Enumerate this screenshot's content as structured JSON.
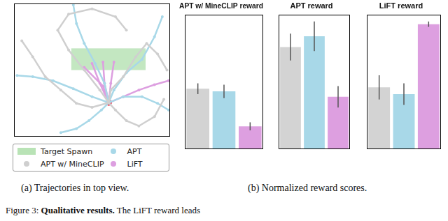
{
  "chart_data": [
    {
      "type": "scatter",
      "xlim": [
        0,
        100
      ],
      "ylim": [
        0,
        100
      ],
      "tick_labels": false,
      "legend": "bottom",
      "target": {
        "name": "Target Spawn",
        "xrange": [
          36.7,
          84.3
        ],
        "yrange": [
          50,
          66.3
        ],
        "color": "#b9e3b6"
      },
      "start": {
        "x": 60.7,
        "y": 25.5,
        "color": "#e8384f"
      },
      "series": [
        {
          "name": "APT w/ MineCLIP",
          "color": "#cfcfcf",
          "trajectories": [
            [
              [
                60.7,
                25.5
              ],
              [
                55,
                35
              ],
              [
                45,
                50
              ],
              [
                35,
                65
              ],
              [
                28,
                80
              ],
              [
                35,
                92
              ],
              [
                50,
                96
              ],
              [
                65,
                90
              ],
              [
                72,
                80
              ]
            ],
            [
              [
                60.7,
                25.5
              ],
              [
                62,
                35
              ],
              [
                70,
                45
              ],
              [
                78,
                60
              ],
              [
                85,
                70
              ],
              [
                92,
                62
              ],
              [
                98,
                50
              ]
            ],
            [
              [
                60.7,
                25.5
              ],
              [
                50,
                22
              ],
              [
                40,
                25
              ],
              [
                30,
                35
              ],
              [
                20,
                45
              ],
              [
                12,
                60
              ],
              [
                5,
                72
              ]
            ],
            [
              [
                60.7,
                25.5
              ],
              [
                65,
                20
              ],
              [
                72,
                12
              ],
              [
                80,
                8
              ],
              [
                90,
                15
              ],
              [
                96,
                28
              ]
            ]
          ]
        },
        {
          "name": "APT",
          "color": "#a8d8e8",
          "trajectories": [
            [
              [
                60.7,
                25.5
              ],
              [
                50,
                30
              ],
              [
                38,
                36
              ],
              [
                25,
                42
              ],
              [
                12,
                45
              ],
              [
                2,
                46
              ]
            ],
            [
              [
                60.7,
                25.5
              ],
              [
                58,
                40
              ],
              [
                52,
                55
              ],
              [
                45,
                70
              ],
              [
                40,
                85
              ],
              [
                38,
                99
              ]
            ],
            [
              [
                60.7,
                25.5
              ],
              [
                64,
                35
              ],
              [
                72,
                48
              ],
              [
                82,
                58
              ],
              [
                90,
                75
              ],
              [
                95,
                90
              ]
            ],
            [
              [
                60.7,
                25.5
              ],
              [
                56,
                20
              ],
              [
                48,
                12
              ],
              [
                40,
                6
              ],
              [
                30,
                3
              ]
            ],
            [
              [
                60.7,
                25.5
              ],
              [
                70,
                30
              ],
              [
                82,
                30
              ],
              [
                92,
                25
              ],
              [
                99,
                20
              ]
            ]
          ]
        },
        {
          "name": "LiFT",
          "color": "#dd9fe0",
          "trajectories": [
            [
              [
                60.7,
                25.5
              ],
              [
                55,
                40
              ],
              [
                50,
                55
              ]
            ],
            [
              [
                60.7,
                25.5
              ],
              [
                58,
                40
              ],
              [
                57,
                56
              ]
            ],
            [
              [
                60.7,
                25.5
              ],
              [
                62,
                40
              ],
              [
                64,
                56
              ]
            ],
            [
              [
                60.7,
                25.5
              ],
              [
                57,
                38
              ],
              [
                45,
                52
              ]
            ],
            [
              [
                60.7,
                25.5
              ],
              [
                70,
                30
              ],
              [
                80,
                35
              ],
              [
                90,
                39
              ],
              [
                99,
                42
              ]
            ]
          ]
        }
      ]
    },
    {
      "type": "bar",
      "title": "APT w/ MineCLIP reward",
      "categories": [
        null,
        null,
        null
      ],
      "values": [
        0.45,
        0.43,
        0.17
      ],
      "errors": [
        0.04,
        0.05,
        0.03
      ],
      "colors": [
        "#d3d3d3",
        "#a8d8e8",
        "#dd9fe0"
      ],
      "ylim": [
        0,
        1
      ],
      "tick_labels": false
    },
    {
      "type": "bar",
      "title": "APT reward",
      "categories": [
        null,
        null,
        null
      ],
      "values": [
        0.76,
        0.84,
        0.39
      ],
      "errors": [
        0.1,
        0.11,
        0.08
      ],
      "colors": [
        "#d3d3d3",
        "#a8d8e8",
        "#dd9fe0"
      ],
      "ylim": [
        0,
        1
      ],
      "tick_labels": false
    },
    {
      "type": "bar",
      "title": "LiFT reward",
      "categories": [
        null,
        null,
        null
      ],
      "values": [
        0.46,
        0.41,
        0.93
      ],
      "errors": [
        0.09,
        0.08,
        0.02
      ],
      "colors": [
        "#d3d3d3",
        "#a8d8e8",
        "#dd9fe0"
      ],
      "ylim": [
        0,
        1
      ],
      "tick_labels": false
    }
  ],
  "captions": [
    "(a) Trajectories in top view.",
    "(b) Normalized reward scores."
  ],
  "figure_caption": {
    "label": "Figure 3:",
    "bold": "Qualitative results.",
    "text": "The LiFT reward leads"
  }
}
